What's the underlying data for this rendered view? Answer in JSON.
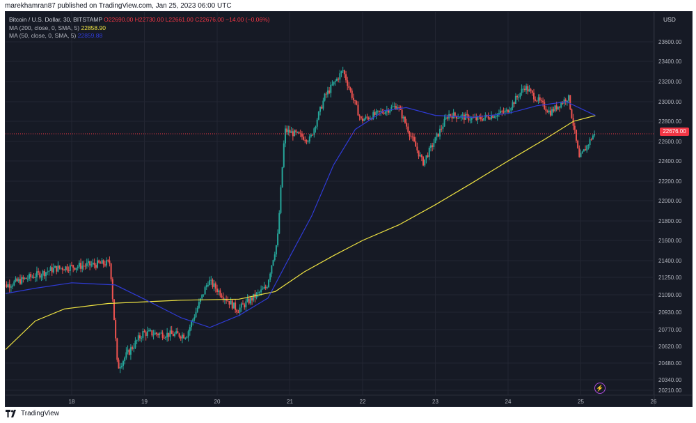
{
  "header": {
    "publisher_line": "marekhamran87 published on TradingView.com, Jan 25, 2023 06:00 UTC"
  },
  "legend": {
    "symbol": "Bitcoin / U.S. Dollar, 30, BITSTAMP",
    "o": "O22690.00",
    "h": "H22730.00",
    "l": "L22661.00",
    "c": "C22676.00",
    "change": "−14.00 (−0.06%)",
    "ma200_label": "MA (200, close, 0, SMA, 5)",
    "ma200_value": "22858.90",
    "ma50_label": "MA (50, close, 0, SMA, 5)",
    "ma50_value": "22859.88"
  },
  "price_axis": {
    "currency": "USD",
    "current_price_label": "22676.00"
  },
  "footer": {
    "brand": "TradingView"
  },
  "colors": {
    "background": "#161a25",
    "up_candle": "#26a69a",
    "down_candle": "#ef5350",
    "ma200": "#f0e442",
    "ma50": "#2f3bd6",
    "price_line": "#f23645"
  },
  "icons": [
    "tradingview-logo-icon",
    "lightning-bolt-icon"
  ],
  "chart_data": {
    "type": "candlestick",
    "title": "Bitcoin / U.S. Dollar, 30, BITSTAMP",
    "x_ticks": [
      "18",
      "19",
      "20",
      "21",
      "22",
      "23",
      "24",
      "25",
      "26"
    ],
    "y_ticks": [
      "23600.00",
      "23400.00",
      "23200.00",
      "23000.00",
      "22800.00",
      "22600.00",
      "22400.00",
      "22200.00",
      "22000.00",
      "21800.00",
      "21600.00",
      "21400.00",
      "21250.00",
      "21090.00",
      "20930.00",
      "20770.00",
      "20620.00",
      "20480.00",
      "20340.00",
      "20210.00"
    ],
    "current_price": 22676,
    "ma200_path": [
      [
        17.0,
        20540
      ],
      [
        17.5,
        20850
      ],
      [
        17.9,
        20960
      ],
      [
        18.5,
        21010
      ],
      [
        19.5,
        21040
      ],
      [
        20.3,
        21050
      ],
      [
        20.8,
        21120
      ],
      [
        21.2,
        21300
      ],
      [
        21.6,
        21450
      ],
      [
        22.0,
        21600
      ],
      [
        22.5,
        21760
      ],
      [
        23.0,
        21960
      ],
      [
        23.5,
        22180
      ],
      [
        24.0,
        22400
      ],
      [
        24.5,
        22620
      ],
      [
        24.9,
        22800
      ],
      [
        25.2,
        22858.9
      ]
    ],
    "ma50_path": [
      [
        17.0,
        21090
      ],
      [
        17.5,
        21150
      ],
      [
        18.0,
        21200
      ],
      [
        18.6,
        21180
      ],
      [
        19.0,
        21050
      ],
      [
        19.5,
        20880
      ],
      [
        19.9,
        20790
      ],
      [
        20.3,
        20900
      ],
      [
        20.7,
        21060
      ],
      [
        21.0,
        21440
      ],
      [
        21.3,
        21850
      ],
      [
        21.6,
        22360
      ],
      [
        21.9,
        22720
      ],
      [
        22.3,
        22910
      ],
      [
        22.6,
        22940
      ],
      [
        23.0,
        22860
      ],
      [
        23.5,
        22840
      ],
      [
        24.0,
        22880
      ],
      [
        24.4,
        22960
      ],
      [
        24.8,
        23000
      ],
      [
        25.2,
        22859.88
      ]
    ],
    "ohlc_key_points": [
      {
        "x": 17.0,
        "price": 21150
      },
      {
        "x": 17.8,
        "price": 21330
      },
      {
        "x": 18.55,
        "price": 21380
      },
      {
        "x": 18.65,
        "price": 20440
      },
      {
        "x": 19.0,
        "price": 20740
      },
      {
        "x": 19.6,
        "price": 20720
      },
      {
        "x": 19.9,
        "price": 21220
      },
      {
        "x": 20.3,
        "price": 20950
      },
      {
        "x": 20.7,
        "price": 21160
      },
      {
        "x": 20.85,
        "price": 21600
      },
      {
        "x": 20.95,
        "price": 22710
      },
      {
        "x": 21.3,
        "price": 22620
      },
      {
        "x": 21.5,
        "price": 23050
      },
      {
        "x": 21.75,
        "price": 23310
      },
      {
        "x": 22.0,
        "price": 22810
      },
      {
        "x": 22.5,
        "price": 22960
      },
      {
        "x": 22.85,
        "price": 22380
      },
      {
        "x": 23.2,
        "price": 22870
      },
      {
        "x": 23.6,
        "price": 22820
      },
      {
        "x": 24.0,
        "price": 22900
      },
      {
        "x": 24.25,
        "price": 23150
      },
      {
        "x": 24.6,
        "price": 22890
      },
      {
        "x": 24.85,
        "price": 23050
      },
      {
        "x": 25.0,
        "price": 22420
      },
      {
        "x": 25.2,
        "price": 22676
      }
    ]
  }
}
